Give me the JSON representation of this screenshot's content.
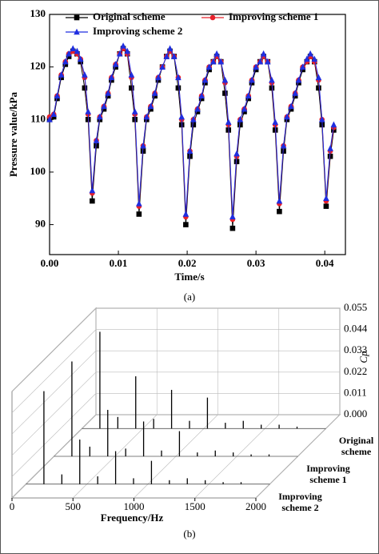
{
  "chart_data": [
    {
      "type": "line",
      "x_label": "Time/s",
      "y_label": "Pressure value/kPa",
      "caption": "(a)",
      "legend": "upper left",
      "xlim": [
        0,
        0.043
      ],
      "xticks": [
        {
          "value": 0,
          "label": "0.00"
        },
        0.01,
        0.02,
        0.03,
        0.04
      ],
      "ylim": [
        84.3,
        130
      ],
      "yticks": [
        90,
        100,
        110,
        120,
        130
      ],
      "x": [
        0,
        0.0006,
        0.0011,
        0.0017,
        0.0023,
        0.0028,
        0.0034,
        0.004,
        0.0045,
        0.0051,
        0.0056,
        0.0062,
        0.0068,
        0.0073,
        0.0079,
        0.0085,
        0.009,
        0.0096,
        0.0102,
        0.0107,
        0.0113,
        0.0119,
        0.0124,
        0.013,
        0.0136,
        0.0141,
        0.0147,
        0.0153,
        0.0158,
        0.0164,
        0.017,
        0.0175,
        0.0181,
        0.0187,
        0.0192,
        0.0198,
        0.0204,
        0.0209,
        0.0215,
        0.0221,
        0.0226,
        0.0232,
        0.0238,
        0.0243,
        0.0249,
        0.0255,
        0.026,
        0.0266,
        0.0272,
        0.0277,
        0.0283,
        0.0289,
        0.0294,
        0.03,
        0.0306,
        0.0311,
        0.0317,
        0.0323,
        0.0328,
        0.0334,
        0.034,
        0.0345,
        0.0351,
        0.0357,
        0.0362,
        0.0368,
        0.0374,
        0.0379,
        0.0385,
        0.0391,
        0.0396,
        0.0402,
        0.0408,
        0.0413
      ],
      "series": [
        {
          "name": "Original scheme",
          "color": "#000000",
          "marker": "square",
          "values": [
            110,
            110.5,
            114,
            118,
            120.5,
            122,
            123,
            122.5,
            121,
            116,
            110,
            94.5,
            105,
            110,
            112,
            114.5,
            117.5,
            120,
            122.5,
            123.5,
            122.5,
            116,
            110,
            92,
            104,
            110,
            112,
            114.5,
            117.5,
            120,
            122,
            123,
            122,
            116,
            109,
            90,
            103,
            109,
            111.5,
            114,
            117,
            119.5,
            121,
            122,
            121,
            115,
            108,
            89.3,
            102,
            109,
            111.5,
            114,
            117,
            119.5,
            121,
            122,
            121,
            116,
            108,
            92.5,
            104,
            110,
            112,
            114.5,
            117,
            119.5,
            121,
            122,
            121,
            116,
            109,
            93.5,
            103,
            108
          ]
        },
        {
          "name": "Improving scheme 1",
          "color": "#e8202a",
          "marker": "circle",
          "values": [
            110.5,
            111,
            114.5,
            118.5,
            121,
            122.5,
            123,
            122.5,
            121.5,
            118,
            111,
            96,
            106,
            110.5,
            112.5,
            115,
            118,
            120.5,
            122.5,
            123.5,
            122.5,
            118,
            111,
            93.5,
            105,
            110.5,
            112.5,
            115,
            118,
            120,
            122,
            123,
            122,
            118,
            110,
            91.5,
            104,
            110,
            112,
            114.5,
            117.5,
            120,
            121,
            122,
            121,
            117,
            109,
            91,
            103,
            110,
            112,
            114.5,
            117.5,
            120,
            121,
            122,
            121,
            117,
            109,
            94,
            105,
            110.5,
            112.5,
            115,
            117.5,
            120,
            121,
            122,
            121,
            117.5,
            110,
            94.5,
            104,
            108.5
          ]
        },
        {
          "name": "Improving scheme 2",
          "color": "#1f2ee0",
          "marker": "triangle",
          "values": [
            110,
            111,
            114.5,
            118.5,
            121,
            122.5,
            123.5,
            123,
            121.5,
            118.5,
            111.5,
            96.5,
            106,
            110.5,
            112.5,
            115,
            118,
            120.5,
            122.5,
            124,
            123,
            118.5,
            111.5,
            94,
            105,
            110.5,
            112.5,
            115,
            118,
            120,
            122,
            123.5,
            122,
            118,
            110.5,
            92,
            104,
            110,
            112,
            114.5,
            117.5,
            120,
            121,
            122.5,
            121,
            117.5,
            109.5,
            91.5,
            103.5,
            110,
            112,
            114.5,
            117.5,
            120,
            121,
            122.5,
            121,
            117.5,
            109.5,
            94.5,
            105,
            110.5,
            112.5,
            115,
            117.5,
            120,
            121.5,
            122.5,
            121.5,
            118,
            110,
            95,
            104.5,
            109
          ]
        }
      ]
    },
    {
      "type": "waterfall3d",
      "x_label": "Frequency/Hz",
      "y_label": "Cp",
      "caption": "(b)",
      "xlim": [
        0,
        2000
      ],
      "xticks": [
        0,
        500,
        1000,
        1500,
        2000
      ],
      "ylim": [
        0,
        0.055
      ],
      "yticks": [
        {
          "value": 0,
          "label": "0.000"
        },
        0.011,
        0.022,
        0.033,
        0.044,
        0.055
      ],
      "grid": true,
      "x": [
        147,
        294,
        441,
        588,
        735,
        882,
        1029,
        1176,
        1323,
        1470,
        1617,
        1764
      ],
      "series": [
        {
          "name": "Original scheme",
          "color": "#000000",
          "values": [
            0.05,
            0.006,
            0.027,
            0.005,
            0.02,
            0.004,
            0.016,
            0.003,
            0.004,
            0.002,
            0.002,
            0.001
          ]
        },
        {
          "name": "Improving scheme 1",
          "color": "#000000",
          "values": [
            0.049,
            0.005,
            0.024,
            0.004,
            0.018,
            0.003,
            0.013,
            0.002,
            0.003,
            0.002,
            0.001,
            0.001
          ]
        },
        {
          "name": "Improving scheme 2",
          "color": "#000000",
          "values": [
            0.048,
            0.005,
            0.023,
            0.004,
            0.017,
            0.003,
            0.012,
            0.002,
            0.003,
            0.002,
            0.001,
            0.001
          ]
        }
      ]
    }
  ]
}
